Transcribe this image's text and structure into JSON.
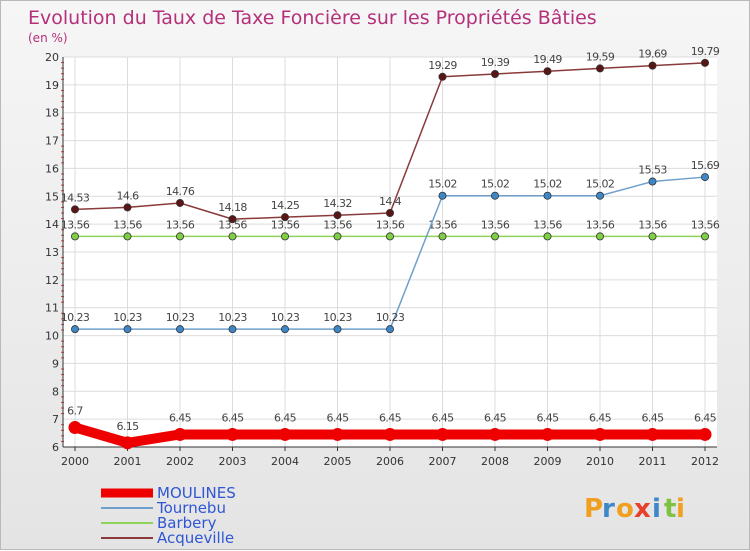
{
  "chart_data": {
    "type": "line",
    "title": "Evolution du Taux de Taxe Foncière sur les Propriétés Bâties",
    "unit_label": "(en %)",
    "categories": [
      "2000",
      "2001",
      "2002",
      "2003",
      "2004",
      "2005",
      "2006",
      "2007",
      "2008",
      "2009",
      "2010",
      "2011",
      "2012"
    ],
    "ylim": [
      6,
      20
    ],
    "yticks": [
      "6",
      "7",
      "8",
      "9",
      "10",
      "11",
      "12",
      "13",
      "14",
      "15",
      "16",
      "17",
      "18",
      "19",
      "20"
    ],
    "series": [
      {
        "name": "Acqueville",
        "color": "#8a3a3a",
        "dot": "#5a1515",
        "labels": [
          "14.53",
          "14.6",
          "14.76",
          "14.18",
          "14.25",
          "14.32",
          "14.4",
          "19.29",
          "19.39",
          "19.49",
          "19.59",
          "19.69",
          "19.79"
        ],
        "values": [
          14.53,
          14.6,
          14.76,
          14.18,
          14.25,
          14.32,
          14.4,
          19.29,
          19.39,
          19.49,
          19.59,
          19.69,
          19.79
        ]
      },
      {
        "name": "Barbery",
        "color": "#8fd35a",
        "dot": "#7fcf45",
        "labels": [
          "13.56",
          "13.56",
          "13.56",
          "13.56",
          "13.56",
          "13.56",
          "13.56",
          "13.56",
          "13.56",
          "13.56",
          "13.56",
          "13.56",
          "13.56"
        ],
        "values": [
          13.56,
          13.56,
          13.56,
          13.56,
          13.56,
          13.56,
          13.56,
          13.56,
          13.56,
          13.56,
          13.56,
          13.56,
          13.56
        ]
      },
      {
        "name": "Tournebu",
        "color": "#6fa0cc",
        "dot": "#3d87c8",
        "labels": [
          "10.23",
          "10.23",
          "10.23",
          "10.23",
          "10.23",
          "10.23",
          "10.23",
          "15.02",
          "15.02",
          "15.02",
          "15.02",
          "15.53",
          "15.69"
        ],
        "values": [
          10.23,
          10.23,
          10.23,
          10.23,
          10.23,
          10.23,
          10.23,
          15.02,
          15.02,
          15.02,
          15.02,
          15.53,
          15.69
        ]
      },
      {
        "name": "MOULINES",
        "color": "#ee0000",
        "dot": "#ee0000",
        "bold": true,
        "labels": [
          "6.7",
          "6.15",
          "6.45",
          "6.45",
          "6.45",
          "6.45",
          "6.45",
          "6.45",
          "6.45",
          "6.45",
          "6.45",
          "6.45",
          "6.45"
        ],
        "values": [
          6.7,
          6.15,
          6.45,
          6.45,
          6.45,
          6.45,
          6.45,
          6.45,
          6.45,
          6.45,
          6.45,
          6.45,
          6.45
        ]
      }
    ],
    "legend": [
      "MOULINES",
      "Tournebu",
      "Barbery",
      "Acqueville"
    ]
  },
  "logo": {
    "letters": [
      "P",
      "r",
      "o",
      "x",
      "i",
      "t",
      "i"
    ],
    "colors": [
      "#f0a020",
      "#3d87c8",
      "#f0a020",
      "#e8402a",
      "#3d87c8",
      "#7fc242",
      "#f0a020"
    ]
  }
}
